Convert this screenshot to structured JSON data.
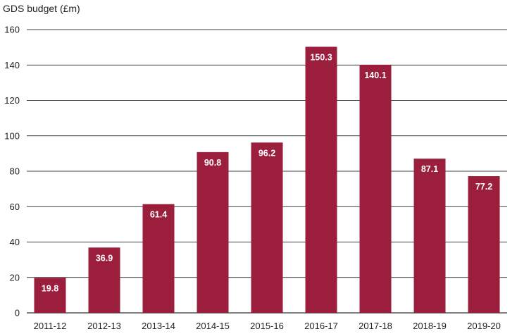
{
  "chart_data": {
    "type": "bar",
    "ylabel": "GDS budget (£m)",
    "categories": [
      "2011-12",
      "2012-13",
      "2013-14",
      "2014-15",
      "2015-16",
      "2016-17",
      "2017-18",
      "2018-19",
      "2019-20"
    ],
    "values": [
      19.8,
      36.9,
      61.4,
      90.8,
      96.2,
      150.3,
      140.1,
      87.1,
      77.2
    ],
    "data_labels": [
      "19.8",
      "36.9",
      "61.4",
      "90.8",
      "96.2",
      "150.3",
      "140.1",
      "87.1",
      "77.2"
    ],
    "ylim": [
      0,
      160
    ],
    "yticks": [
      "0",
      "20",
      "40",
      "60",
      "80",
      "100",
      "120",
      "140",
      "160"
    ],
    "grid": true,
    "legend": "none",
    "bar_color": "#9b1f3d",
    "grid_color": "#000000"
  }
}
